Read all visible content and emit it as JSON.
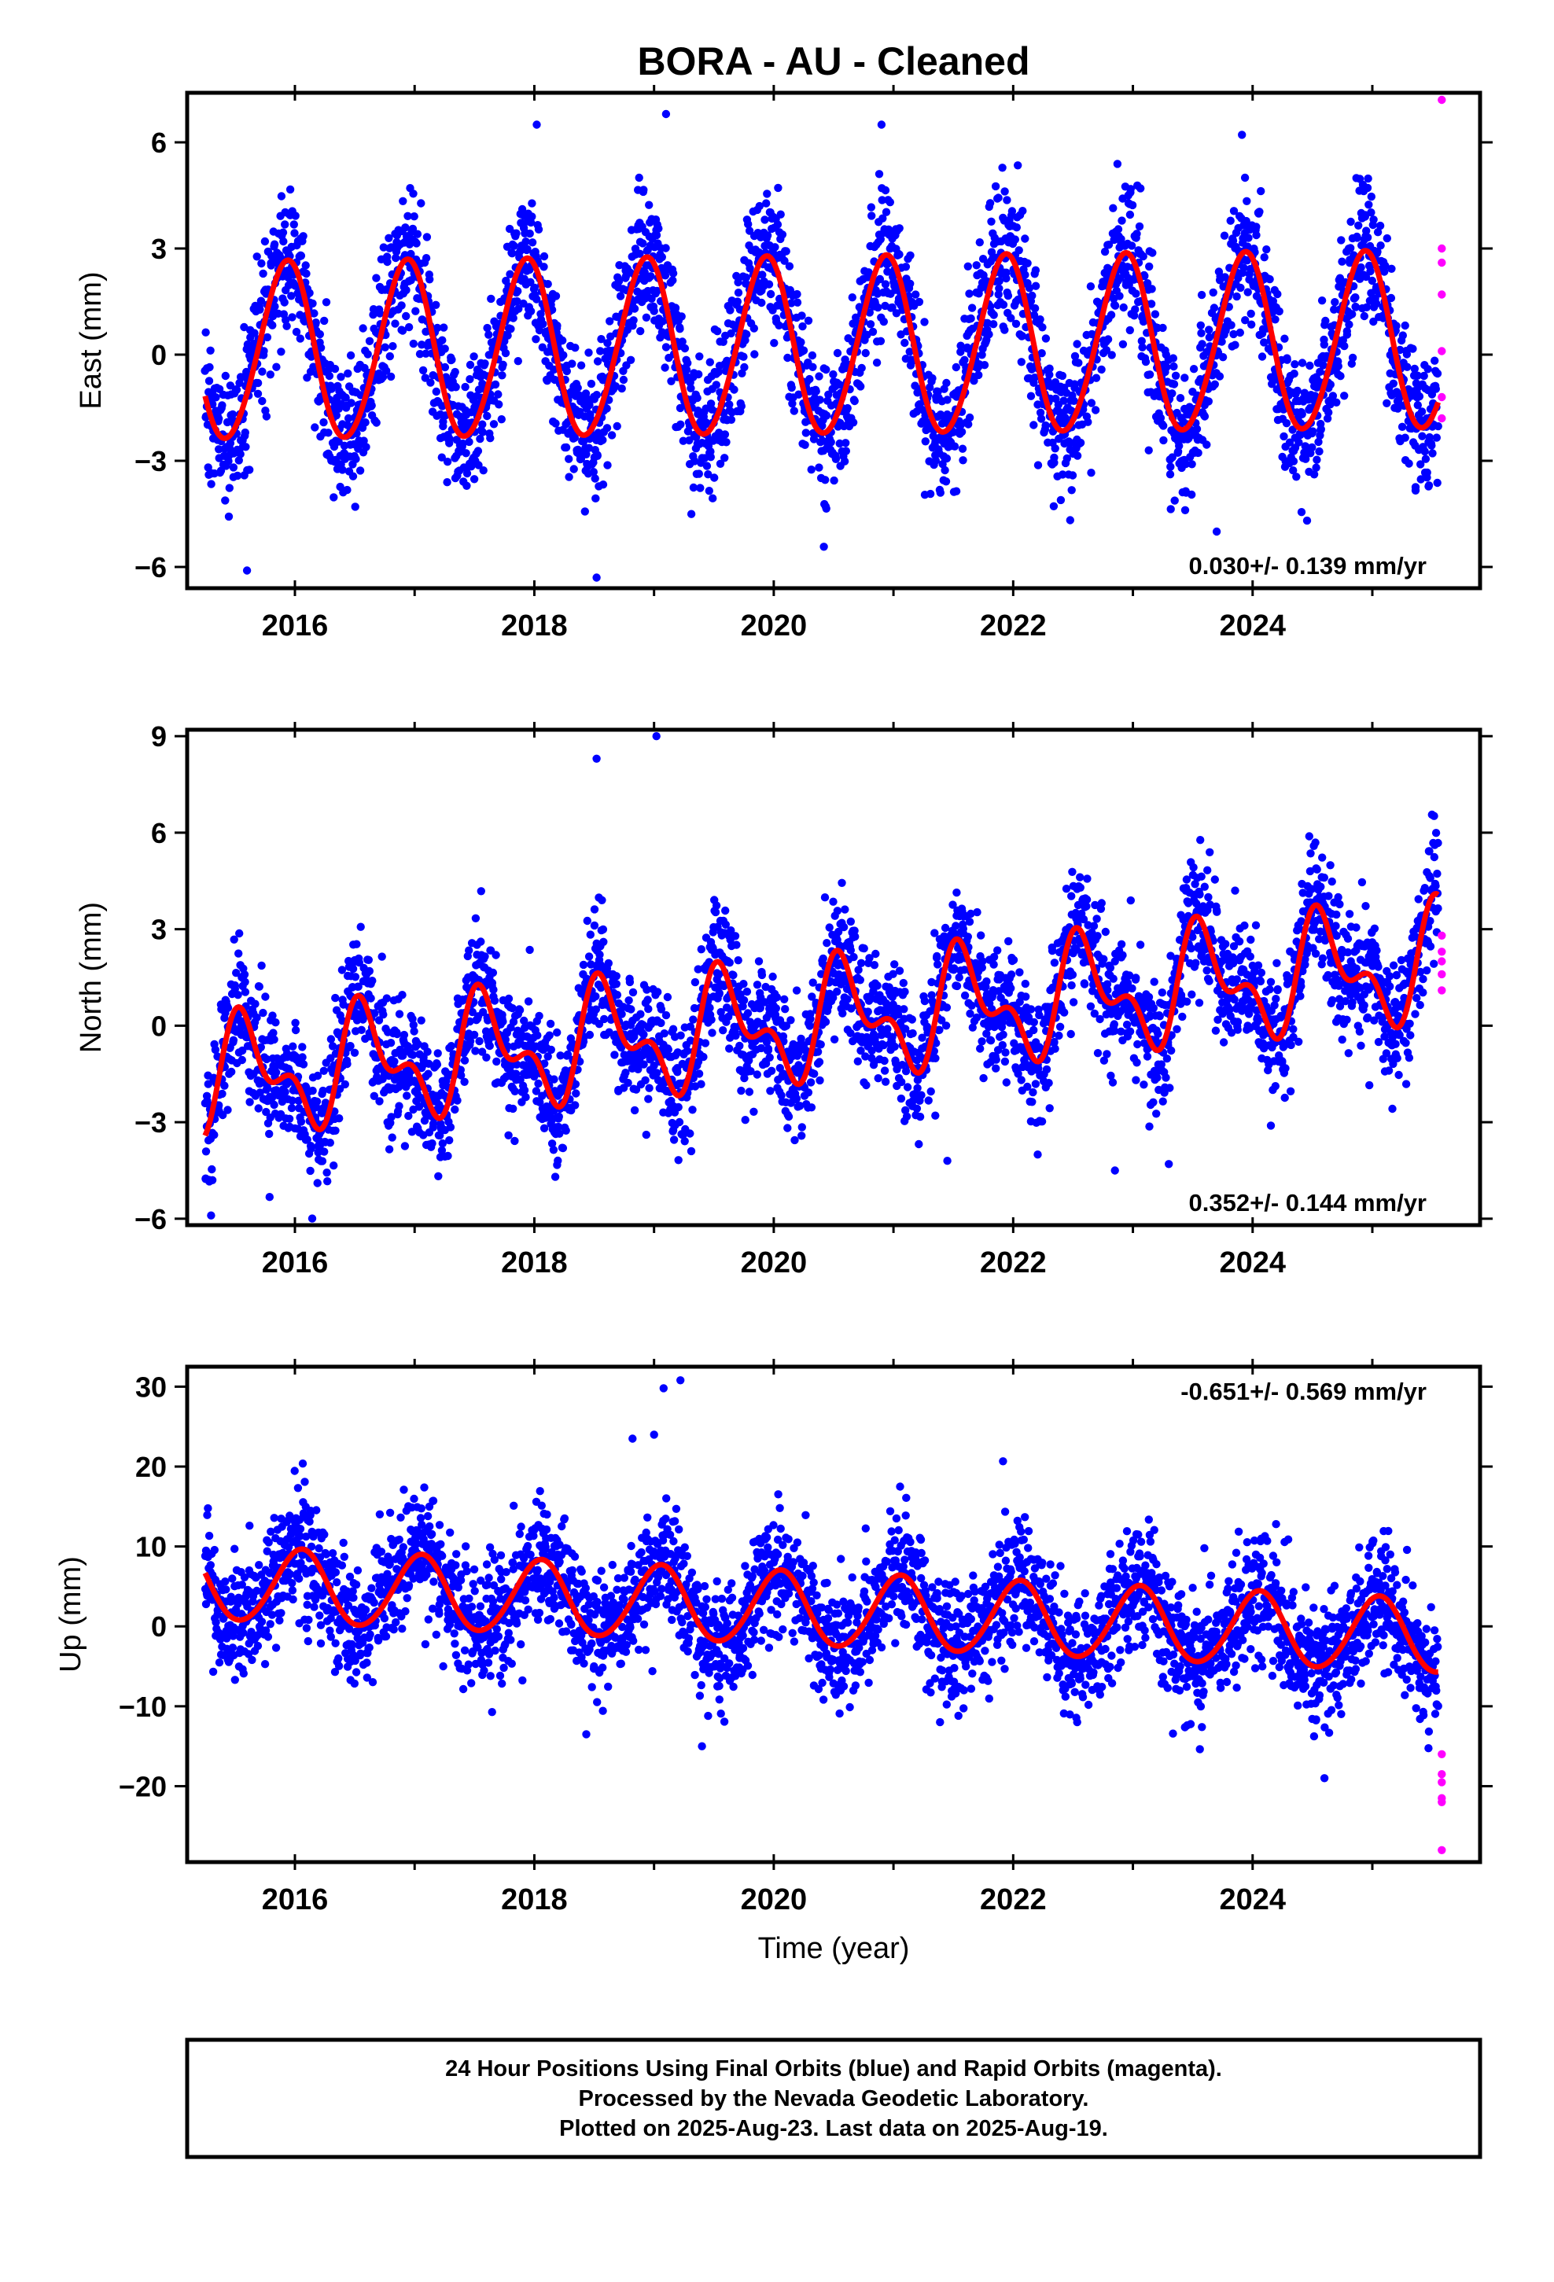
{
  "figure": {
    "title": "BORA  - AU - Cleaned",
    "xlabel": "Time (year)",
    "footer": [
      "24 Hour Positions Using Final Orbits (blue) and Rapid Orbits (magenta).",
      "Processed by the Nevada Geodetic Laboratory.",
      "Plotted on 2025-Aug-23. Last data on 2025-Aug-19."
    ]
  },
  "colors": {
    "final_orbits": "#0000ff",
    "rapid_orbits": "#ff00ff",
    "model_fit": "#ff0000",
    "frame": "#000000"
  },
  "chart_data": [
    {
      "type": "scatter",
      "ylabel": "East (mm)",
      "xlim": [
        2015.1,
        2025.9
      ],
      "ylim": [
        -6.6,
        7.4
      ],
      "xticks": [
        2016,
        2018,
        2020,
        2022,
        2024
      ],
      "xtick_labels": [
        "2016",
        "2018",
        "2020",
        "2022",
        "2024"
      ],
      "yticks": [
        -6,
        -3,
        0,
        3,
        6
      ],
      "ytick_labels": [
        "−6",
        "−3",
        "0",
        "3",
        "6"
      ],
      "rate_text": "0.030+/- 0.139 mm/yr",
      "rate_position": "bottom-right",
      "grid": false,
      "data_span": [
        2015.25,
        2025.55
      ],
      "model": {
        "offset": 0.2,
        "rate": 0.03,
        "t0": 2020.4,
        "annual_amp": 2.5,
        "annual_peak": 2015.93,
        "semiannual_amp": 0.15,
        "semiannual_peak": 2016.0,
        "scatter": 1.0
      },
      "series": [
        {
          "name": "Final Orbits",
          "color": "#0000ff",
          "count": 3300
        },
        {
          "name": "Rapid Orbits",
          "color": "#ff00ff",
          "x": [
            2025.58,
            2025.58,
            2025.58,
            2025.58,
            2025.58,
            2025.58,
            2025.58
          ],
          "y": [
            7.2,
            3.0,
            2.6,
            1.7,
            0.1,
            -1.2,
            -1.8
          ]
        },
        {
          "name": "Model",
          "color": "#ff0000"
        }
      ],
      "outliers": {
        "x": [
          2015.6,
          2018.52,
          2019.1,
          2018.02,
          2020.9,
          2023.7
        ],
        "y": [
          -6.1,
          -6.3,
          6.8,
          6.5,
          6.5,
          -5.0
        ]
      }
    },
    {
      "type": "scatter",
      "ylabel": "North (mm)",
      "xlim": [
        2015.1,
        2025.9
      ],
      "ylim": [
        -6.2,
        9.2
      ],
      "xticks": [
        2016,
        2018,
        2020,
        2022,
        2024
      ],
      "xtick_labels": [
        "2016",
        "2018",
        "2020",
        "2022",
        "2024"
      ],
      "yticks": [
        -6,
        -3,
        0,
        3,
        6,
        9
      ],
      "ytick_labels": [
        "−6",
        "−3",
        "0",
        "3",
        "6",
        "9"
      ],
      "rate_text": "0.352+/- 0.144 mm/yr",
      "rate_position": "bottom-right",
      "grid": false,
      "data_span": [
        2015.25,
        2025.55
      ],
      "model": {
        "offset": 0.15,
        "rate": 0.352,
        "t0": 2020.4,
        "annual_amp": 1.45,
        "annual_peak": 2015.6,
        "semiannual_amp": 0.9,
        "semiannual_peak": 2015.5,
        "scatter": 1.0
      },
      "series": [
        {
          "name": "Final Orbits",
          "color": "#0000ff",
          "count": 3300
        },
        {
          "name": "Rapid Orbits",
          "color": "#ff00ff",
          "x": [
            2025.58,
            2025.58,
            2025.58,
            2025.58,
            2025.58
          ],
          "y": [
            2.8,
            2.3,
            2.0,
            1.6,
            1.1
          ]
        },
        {
          "name": "Model",
          "color": "#ff0000"
        }
      ],
      "outliers": {
        "x": [
          2018.52,
          2019.02,
          2015.3,
          2022.85,
          2023.3,
          2021.45
        ],
        "y": [
          8.3,
          9.0,
          -5.9,
          -4.5,
          -4.3,
          -4.2
        ]
      }
    },
    {
      "type": "scatter",
      "ylabel": "Up (mm)",
      "xlim": [
        2015.1,
        2025.9
      ],
      "ylim": [
        -29.5,
        32.5
      ],
      "xticks": [
        2016,
        2018,
        2020,
        2022,
        2024
      ],
      "xtick_labels": [
        "2016",
        "2018",
        "2020",
        "2022",
        "2024"
      ],
      "yticks": [
        -20,
        -10,
        0,
        10,
        20,
        30
      ],
      "ytick_labels": [
        "−20",
        "−10",
        "0",
        "10",
        "20",
        "30"
      ],
      "rate_text": "-0.651+/- 0.569 mm/yr",
      "rate_position": "top-right",
      "grid": false,
      "data_span": [
        2015.25,
        2025.55
      ],
      "model": {
        "offset": 2.0,
        "rate": -0.651,
        "t0": 2020.4,
        "annual_amp": 4.6,
        "annual_peak": 2016.05,
        "semiannual_amp": 0.3,
        "semiannual_peak": 2016.1,
        "scatter": 3.8
      },
      "series": [
        {
          "name": "Final Orbits",
          "color": "#0000ff",
          "count": 3300
        },
        {
          "name": "Rapid Orbits",
          "color": "#ff00ff",
          "x": [
            2025.58,
            2025.58,
            2025.58,
            2025.58,
            2025.58,
            2025.58
          ],
          "y": [
            -16,
            -18.5,
            -19.5,
            -21.5,
            -22,
            -28
          ]
        },
        {
          "name": "Model",
          "color": "#ff0000"
        }
      ],
      "outliers": {
        "x": [
          2019.08,
          2019.22,
          2018.82,
          2019.0,
          2019.4,
          2024.6
        ],
        "y": [
          29.8,
          30.8,
          23.5,
          24.0,
          -15.0,
          -19.0
        ]
      }
    }
  ]
}
